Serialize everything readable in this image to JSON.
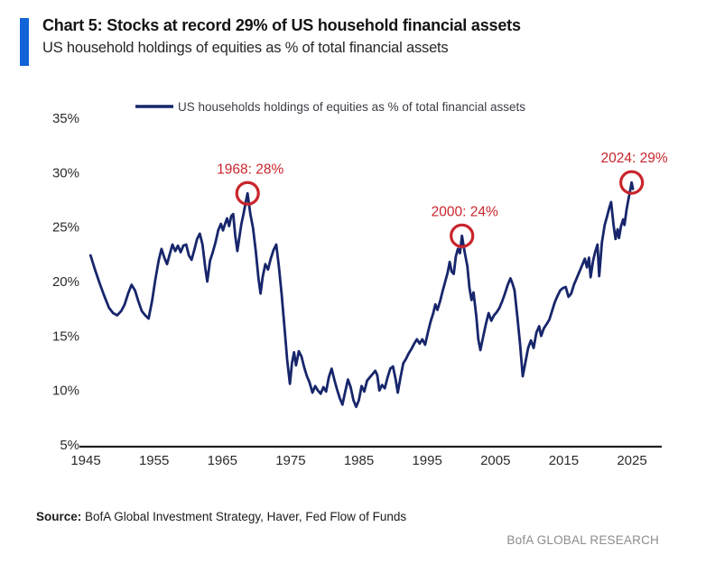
{
  "header": {
    "title": "Chart 5: Stocks at record 29% of US household financial assets",
    "subtitle": "US household holdings of equities as % of total financial assets"
  },
  "source": {
    "label": "Source:",
    "text": " BofA Global Investment Strategy, Haver, Fed Flow of Funds"
  },
  "footer": {
    "brand": "BofA GLOBAL RESEARCH"
  },
  "colors": {
    "accent_bar": "#1164d8",
    "line": "#17266b",
    "annotation": "#c9252c",
    "axis": "#231f20",
    "tick_text": "#2b2b2b",
    "legend_text": "#3c3c46"
  },
  "chart_data": {
    "type": "line",
    "title": "US household holdings of equities as % of total financial assets",
    "legend_position": "top-left-inside",
    "grid": false,
    "x_axis": {
      "range": [
        1945,
        2025
      ],
      "ticks": [
        1945,
        1955,
        1965,
        1975,
        1985,
        1995,
        2005,
        2015,
        2025
      ]
    },
    "y_axis": {
      "range": [
        5,
        35
      ],
      "ticks": [
        35,
        30,
        25,
        20,
        15,
        10,
        5
      ],
      "suffix": "%"
    },
    "annotations": [
      {
        "year": 1968.7,
        "value": 28.1,
        "label": "1968: 28%"
      },
      {
        "year": 2000.1,
        "value": 24.2,
        "label": "2000: 24%"
      },
      {
        "year": 2024.95,
        "value": 29.1,
        "label": "2024: 29%"
      }
    ],
    "series": [
      {
        "name": "US households holdings of equities as % of total financial assets",
        "color": "#17266b",
        "points": [
          [
            1945.7,
            22.4
          ],
          [
            1946.3,
            21.2
          ],
          [
            1947,
            19.9
          ],
          [
            1947.7,
            18.7
          ],
          [
            1948.4,
            17.6
          ],
          [
            1949,
            17.1
          ],
          [
            1949.6,
            16.9
          ],
          [
            1950.2,
            17.3
          ],
          [
            1950.7,
            17.9
          ],
          [
            1951.2,
            18.9
          ],
          [
            1951.7,
            19.7
          ],
          [
            1952.2,
            19.2
          ],
          [
            1952.7,
            18.2
          ],
          [
            1953.2,
            17.3
          ],
          [
            1953.7,
            16.9
          ],
          [
            1954.2,
            16.6
          ],
          [
            1954.7,
            18.2
          ],
          [
            1955.2,
            20.2
          ],
          [
            1955.7,
            22.0
          ],
          [
            1956.1,
            23.0
          ],
          [
            1956.5,
            22.2
          ],
          [
            1956.9,
            21.6
          ],
          [
            1957.3,
            22.5
          ],
          [
            1957.7,
            23.4
          ],
          [
            1958.1,
            22.8
          ],
          [
            1958.5,
            23.3
          ],
          [
            1958.9,
            22.7
          ],
          [
            1959.3,
            23.3
          ],
          [
            1959.7,
            23.4
          ],
          [
            1960.1,
            22.4
          ],
          [
            1960.5,
            22.0
          ],
          [
            1960.9,
            22.9
          ],
          [
            1961.3,
            23.9
          ],
          [
            1961.7,
            24.4
          ],
          [
            1962.1,
            23.4
          ],
          [
            1962.5,
            21.3
          ],
          [
            1962.8,
            20.0
          ],
          [
            1963.2,
            21.9
          ],
          [
            1963.6,
            22.7
          ],
          [
            1964,
            23.6
          ],
          [
            1964.4,
            24.7
          ],
          [
            1964.8,
            25.3
          ],
          [
            1965.1,
            24.7
          ],
          [
            1965.4,
            25.3
          ],
          [
            1965.7,
            25.8
          ],
          [
            1966,
            25.1
          ],
          [
            1966.3,
            26.0
          ],
          [
            1966.6,
            26.2
          ],
          [
            1966.9,
            24.2
          ],
          [
            1967.2,
            22.8
          ],
          [
            1967.5,
            24.1
          ],
          [
            1967.8,
            25.3
          ],
          [
            1968.1,
            26.2
          ],
          [
            1968.4,
            27.2
          ],
          [
            1968.7,
            28.1
          ],
          [
            1969.1,
            26.2
          ],
          [
            1969.5,
            24.9
          ],
          [
            1969.9,
            22.8
          ],
          [
            1970.3,
            20.3
          ],
          [
            1970.6,
            18.9
          ],
          [
            1970.9,
            20.4
          ],
          [
            1971.3,
            21.6
          ],
          [
            1971.7,
            21.1
          ],
          [
            1972.1,
            22.1
          ],
          [
            1972.5,
            22.9
          ],
          [
            1972.9,
            23.4
          ],
          [
            1973.3,
            21.3
          ],
          [
            1973.7,
            18.8
          ],
          [
            1974.1,
            15.8
          ],
          [
            1974.5,
            12.8
          ],
          [
            1974.9,
            10.6
          ],
          [
            1975.2,
            12.5
          ],
          [
            1975.5,
            13.5
          ],
          [
            1975.8,
            12.3
          ],
          [
            1976.2,
            13.6
          ],
          [
            1976.6,
            13.1
          ],
          [
            1977,
            12.1
          ],
          [
            1977.4,
            11.3
          ],
          [
            1977.8,
            10.7
          ],
          [
            1978.2,
            9.8
          ],
          [
            1978.6,
            10.4
          ],
          [
            1979,
            10.0
          ],
          [
            1979.4,
            9.7
          ],
          [
            1979.8,
            10.3
          ],
          [
            1980.2,
            9.9
          ],
          [
            1980.6,
            11.2
          ],
          [
            1981,
            12.0
          ],
          [
            1981.4,
            11.0
          ],
          [
            1981.8,
            10.1
          ],
          [
            1982.2,
            9.3
          ],
          [
            1982.6,
            8.7
          ],
          [
            1983,
            9.9
          ],
          [
            1983.4,
            11.0
          ],
          [
            1983.8,
            10.3
          ],
          [
            1984.2,
            9.1
          ],
          [
            1984.6,
            8.5
          ],
          [
            1985,
            9.1
          ],
          [
            1985.4,
            10.4
          ],
          [
            1985.8,
            9.9
          ],
          [
            1986.2,
            10.9
          ],
          [
            1986.6,
            11.2
          ],
          [
            1987,
            11.5
          ],
          [
            1987.4,
            11.8
          ],
          [
            1987.7,
            11.4
          ],
          [
            1988,
            10.0
          ],
          [
            1988.4,
            10.5
          ],
          [
            1988.8,
            10.2
          ],
          [
            1989.2,
            11.2
          ],
          [
            1989.6,
            12.0
          ],
          [
            1990,
            12.2
          ],
          [
            1990.4,
            11.0
          ],
          [
            1990.7,
            9.8
          ],
          [
            1991.1,
            11.2
          ],
          [
            1991.5,
            12.5
          ],
          [
            1991.9,
            12.9
          ],
          [
            1992.3,
            13.4
          ],
          [
            1992.7,
            13.8
          ],
          [
            1993.1,
            14.3
          ],
          [
            1993.5,
            14.7
          ],
          [
            1993.9,
            14.3
          ],
          [
            1994.3,
            14.7
          ],
          [
            1994.7,
            14.2
          ],
          [
            1995.1,
            15.3
          ],
          [
            1995.5,
            16.3
          ],
          [
            1995.9,
            17.1
          ],
          [
            1996.2,
            17.9
          ],
          [
            1996.5,
            17.4
          ],
          [
            1996.9,
            18.2
          ],
          [
            1997.3,
            19.2
          ],
          [
            1997.7,
            20.1
          ],
          [
            1998,
            20.8
          ],
          [
            1998.3,
            21.8
          ],
          [
            1998.6,
            20.9
          ],
          [
            1998.9,
            20.7
          ],
          [
            1999.2,
            22.3
          ],
          [
            1999.5,
            23.0
          ],
          [
            1999.8,
            22.6
          ],
          [
            2000.1,
            24.2
          ],
          [
            2000.5,
            22.7
          ],
          [
            2000.9,
            21.4
          ],
          [
            2001.2,
            19.4
          ],
          [
            2001.5,
            18.3
          ],
          [
            2001.8,
            19.0
          ],
          [
            2002.2,
            16.8
          ],
          [
            2002.5,
            14.7
          ],
          [
            2002.8,
            13.7
          ],
          [
            2003.2,
            14.9
          ],
          [
            2003.6,
            16.1
          ],
          [
            2004,
            17.1
          ],
          [
            2004.4,
            16.4
          ],
          [
            2004.8,
            16.9
          ],
          [
            2005.2,
            17.2
          ],
          [
            2005.6,
            17.6
          ],
          [
            2006,
            18.2
          ],
          [
            2006.4,
            18.9
          ],
          [
            2006.8,
            19.7
          ],
          [
            2007.2,
            20.3
          ],
          [
            2007.5,
            19.8
          ],
          [
            2007.8,
            19.2
          ],
          [
            2008.2,
            16.8
          ],
          [
            2008.6,
            14.3
          ],
          [
            2009,
            11.3
          ],
          [
            2009.4,
            12.6
          ],
          [
            2009.8,
            13.9
          ],
          [
            2010.2,
            14.6
          ],
          [
            2010.6,
            13.9
          ],
          [
            2011,
            15.3
          ],
          [
            2011.4,
            15.9
          ],
          [
            2011.7,
            15.0
          ],
          [
            2012.1,
            15.7
          ],
          [
            2012.5,
            16.1
          ],
          [
            2012.9,
            16.5
          ],
          [
            2013.3,
            17.3
          ],
          [
            2013.7,
            18.1
          ],
          [
            2014.1,
            18.7
          ],
          [
            2014.5,
            19.2
          ],
          [
            2014.9,
            19.4
          ],
          [
            2015.3,
            19.5
          ],
          [
            2015.7,
            18.6
          ],
          [
            2016.1,
            18.9
          ],
          [
            2016.5,
            19.7
          ],
          [
            2016.9,
            20.3
          ],
          [
            2017.3,
            20.9
          ],
          [
            2017.7,
            21.5
          ],
          [
            2018.1,
            22.1
          ],
          [
            2018.4,
            21.3
          ],
          [
            2018.7,
            22.2
          ],
          [
            2018.95,
            20.4
          ],
          [
            2019.3,
            21.9
          ],
          [
            2019.6,
            22.7
          ],
          [
            2019.95,
            23.4
          ],
          [
            2020.2,
            20.5
          ],
          [
            2020.6,
            23.6
          ],
          [
            2021,
            25.2
          ],
          [
            2021.4,
            26.1
          ],
          [
            2021.7,
            26.8
          ],
          [
            2021.95,
            27.3
          ],
          [
            2022.3,
            25.2
          ],
          [
            2022.6,
            23.9
          ],
          [
            2022.9,
            24.8
          ],
          [
            2023.1,
            24.0
          ],
          [
            2023.4,
            25.1
          ],
          [
            2023.7,
            25.7
          ],
          [
            2023.9,
            25.2
          ],
          [
            2024.2,
            26.6
          ],
          [
            2024.5,
            27.6
          ],
          [
            2024.75,
            28.4
          ],
          [
            2024.95,
            29.1
          ],
          [
            2025.15,
            28.5
          ]
        ]
      }
    ]
  }
}
